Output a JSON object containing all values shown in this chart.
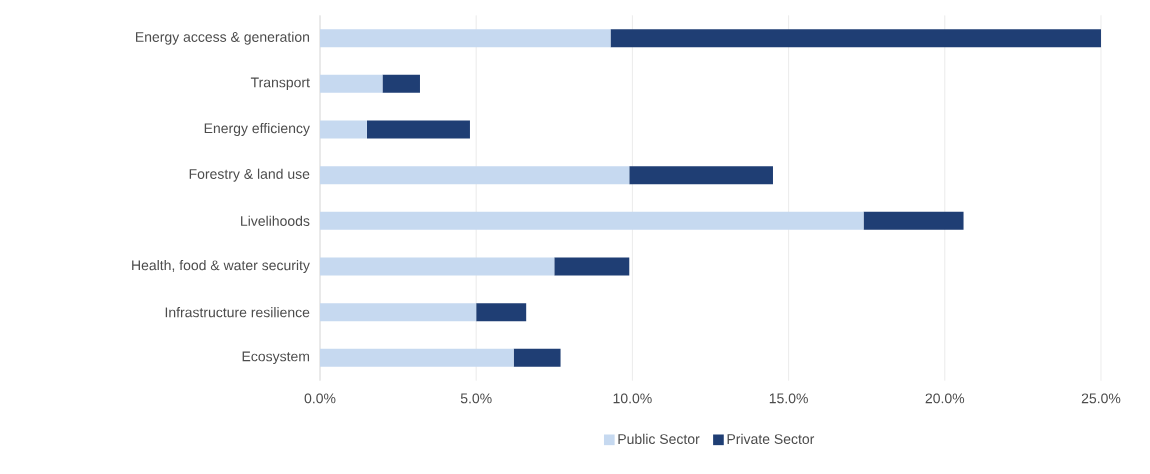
{
  "chart_data": {
    "type": "bar",
    "orientation": "horizontal",
    "stacked": true,
    "categories": [
      "Energy access & generation",
      "Transport",
      "Energy efficiency",
      "Forestry & land use",
      "Livelihoods",
      "Health, food & water security",
      "Infrastructure resilience",
      "Ecosystem"
    ],
    "series": [
      {
        "name": "Public Sector",
        "color": "#c6d9f0",
        "values": [
          9.3,
          2.0,
          1.5,
          9.9,
          17.4,
          7.5,
          5.0,
          6.2
        ]
      },
      {
        "name": "Private Sector",
        "color": "#1f3e74",
        "values": [
          15.7,
          1.2,
          3.3,
          4.6,
          3.2,
          2.4,
          1.6,
          1.5
        ]
      }
    ],
    "xlim": [
      0,
      25
    ],
    "xticks": [
      {
        "value": 0,
        "label": "0.0%"
      },
      {
        "value": 5,
        "label": "5.0%"
      },
      {
        "value": 10,
        "label": "10.0%"
      },
      {
        "value": 15,
        "label": "15.0%"
      },
      {
        "value": 20,
        "label": "20.0%"
      },
      {
        "value": 25,
        "label": "25.0%"
      }
    ],
    "grid": "x",
    "legend": "bottom"
  }
}
